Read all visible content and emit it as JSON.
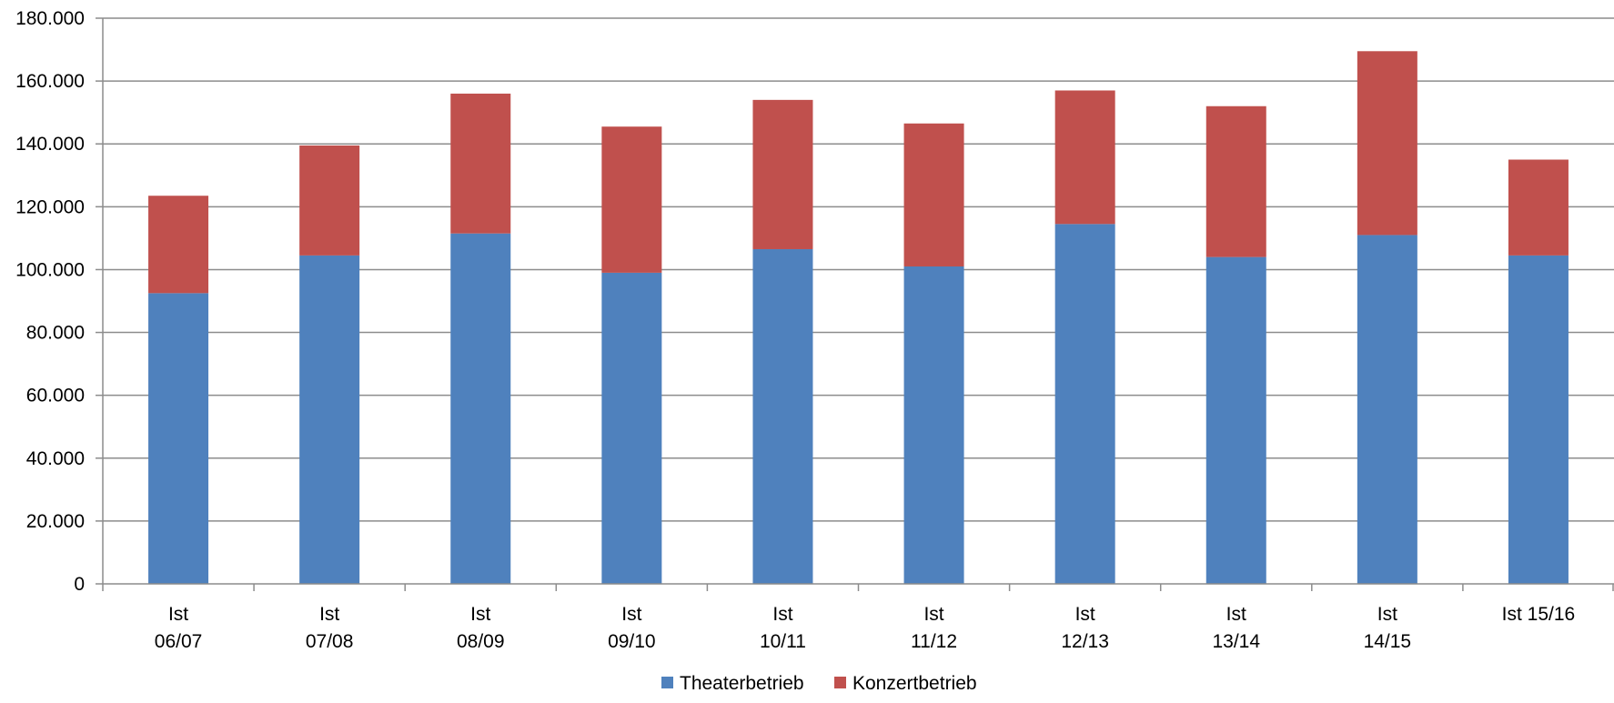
{
  "colors": {
    "theater": "#4f81bd",
    "konzert": "#c0504d",
    "grid": "#8c8c8c",
    "axis": "#8c8c8c"
  },
  "chart_data": {
    "type": "bar",
    "stacked": true,
    "title": "",
    "xlabel": "",
    "ylabel": "",
    "ylim": [
      0,
      180000
    ],
    "yticks": [
      0,
      20000,
      40000,
      60000,
      80000,
      100000,
      120000,
      140000,
      160000,
      180000
    ],
    "ytick_labels": [
      "0",
      "20.000",
      "40.000",
      "60.000",
      "80.000",
      "100.000",
      "120.000",
      "140.000",
      "160.000",
      "180.000"
    ],
    "grid": true,
    "legend_position": "bottom",
    "categories": [
      [
        "Ist",
        "06/07"
      ],
      [
        "Ist",
        "07/08"
      ],
      [
        "Ist",
        "08/09"
      ],
      [
        "Ist",
        "09/10"
      ],
      [
        "Ist",
        "10/11"
      ],
      [
        "Ist",
        "11/12"
      ],
      [
        "Ist",
        "12/13"
      ],
      [
        "Ist",
        "13/14"
      ],
      [
        "Ist",
        "14/15"
      ],
      [
        "Ist 15/16"
      ]
    ],
    "series": [
      {
        "name": "Theaterbetrieb",
        "color": "#4f81bd",
        "values": [
          92500,
          104500,
          111500,
          99000,
          106500,
          101000,
          114500,
          104000,
          111000,
          104500
        ]
      },
      {
        "name": "Konzertbetrieb",
        "color": "#c0504d",
        "values": [
          31000,
          35000,
          44500,
          46500,
          47500,
          45500,
          42500,
          48000,
          58500,
          30500
        ]
      }
    ]
  }
}
